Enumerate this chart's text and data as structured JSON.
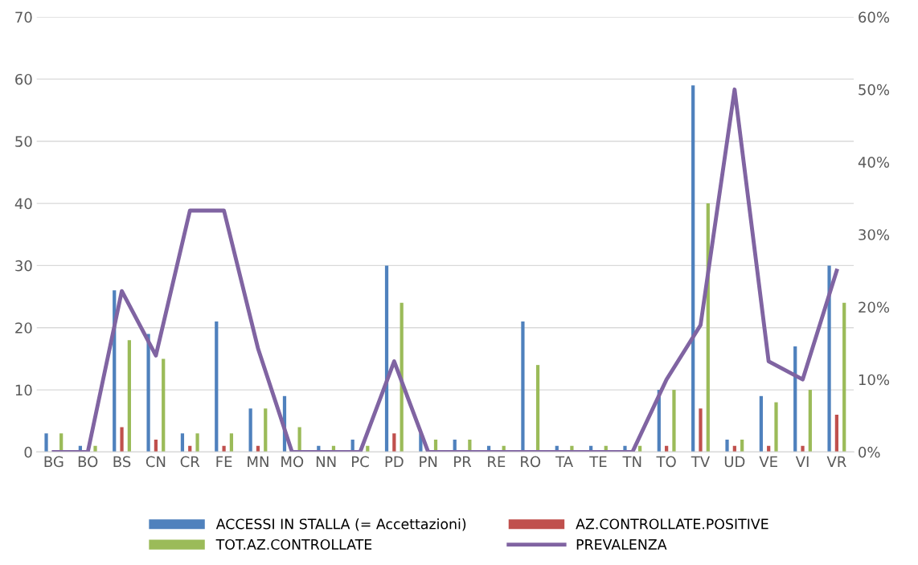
{
  "chart_data": {
    "type": "bar",
    "categories": [
      "BG",
      "BO",
      "BS",
      "CN",
      "CR",
      "FE",
      "MN",
      "MO",
      "NN",
      "PC",
      "PD",
      "PN",
      "PR",
      "RE",
      "RO",
      "TA",
      "TE",
      "TN",
      "TO",
      "TV",
      "UD",
      "VE",
      "VI",
      "VR"
    ],
    "series": [
      {
        "name": "ACCESSI IN STALLA (= Accettazioni)",
        "color": "#4f81bd",
        "values": [
          3,
          1,
          26,
          19,
          3,
          21,
          7,
          9,
          1,
          2,
          30,
          3,
          2,
          1,
          21,
          1,
          1,
          1,
          10,
          59,
          2,
          9,
          17,
          30
        ]
      },
      {
        "name": "AZ.CONTROLLATE.POSITIVE",
        "color": "#c0504d",
        "values": [
          0,
          0,
          4,
          2,
          1,
          1,
          1,
          0,
          0,
          0,
          3,
          0,
          0,
          0,
          0,
          0,
          0,
          0,
          1,
          7,
          1,
          1,
          1,
          6
        ]
      },
      {
        "name": "TOT.AZ.CONTROLLATE",
        "color": "#9bbb59",
        "values": [
          3,
          1,
          18,
          15,
          3,
          3,
          7,
          4,
          1,
          1,
          24,
          2,
          2,
          1,
          14,
          1,
          1,
          1,
          10,
          40,
          2,
          8,
          10,
          24
        ]
      },
      {
        "name": "PREVALENZA",
        "type": "line",
        "axis": "y2",
        "color": "#8064a2",
        "values": [
          0,
          0,
          22.2,
          13.3,
          33.3,
          33.3,
          14.3,
          0,
          0,
          0,
          12.5,
          0,
          0,
          0,
          0,
          0,
          0,
          0,
          10,
          17.5,
          50,
          12.5,
          10,
          25
        ]
      }
    ],
    "ylim": [
      0,
      70
    ],
    "yticks": [
      0,
      10,
      20,
      30,
      40,
      50,
      60,
      70
    ],
    "y2lim": [
      0,
      60
    ],
    "y2ticks": [
      {
        "value": 0,
        "label": "0%"
      },
      {
        "value": 10,
        "label": "10%"
      },
      {
        "value": 20,
        "label": "20%"
      },
      {
        "value": 30,
        "label": "30%"
      },
      {
        "value": 40,
        "label": "40%"
      },
      {
        "value": 50,
        "label": "50%"
      },
      {
        "value": 60,
        "label": "60%"
      }
    ],
    "grid": "y",
    "legend": "bottom",
    "marker": "none",
    "line_style": "solid"
  }
}
